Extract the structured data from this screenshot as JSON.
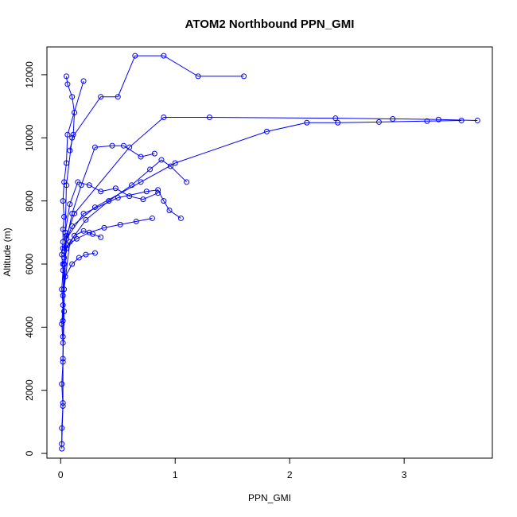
{
  "chart_data": {
    "type": "scatter",
    "title": "ATOM2 Northbound PPN_GMI",
    "xlabel": "PPN_GMI",
    "ylabel": "Altitude (m)",
    "xlim": [
      -0.12,
      3.77
    ],
    "ylim": [
      -150,
      12880
    ],
    "xticks": [
      0,
      1,
      2,
      3
    ],
    "yticks": [
      0,
      2000,
      4000,
      6000,
      8000,
      10000,
      12000
    ],
    "grid": false,
    "legend": "none",
    "color": "#0000ff",
    "marker": "open-circle",
    "style": "points-and-lines",
    "series": [
      {
        "x": [
          0.01,
          0.01,
          0.02,
          0.01,
          0.02,
          0.02,
          0.01,
          0.02,
          0.01,
          0.02,
          0.01,
          0.02,
          0.02,
          0.03,
          0.02,
          0.03,
          0.05,
          0.06,
          0.2
        ],
        "y": [
          150,
          800,
          1500,
          2200,
          2900,
          3500,
          4100,
          4700,
          5200,
          5800,
          6300,
          6700,
          7100,
          7500,
          8000,
          8600,
          9200,
          10100,
          11800
        ]
      },
      {
        "x": [
          0.01,
          0.02,
          0.02,
          0.03,
          0.03,
          0.04,
          0.05,
          0.1,
          0.35,
          0.5,
          0.65,
          0.9,
          1.2,
          1.6
        ],
        "y": [
          300,
          1600,
          3000,
          4500,
          6000,
          7000,
          8500,
          10000,
          11300,
          11300,
          12600,
          12600,
          11950,
          11950
        ]
      },
      {
        "x": [
          0.02,
          0.02,
          0.03,
          0.05,
          0.12,
          0.6,
          0.9,
          1.3,
          2.4,
          2.9,
          3.3,
          3.64
        ],
        "y": [
          3700,
          5000,
          6200,
          6900,
          7600,
          9700,
          10650,
          10650,
          10620,
          10600,
          10580,
          10550
        ]
      },
      {
        "x": [
          0.02,
          0.1,
          0.3,
          0.7,
          1.0,
          1.8,
          2.15,
          2.42,
          2.78,
          3.2,
          3.5
        ],
        "y": [
          6500,
          7200,
          7800,
          8600,
          9200,
          10200,
          10480,
          10480,
          10500,
          10530,
          10550
        ]
      },
      {
        "x": [
          0.02,
          0.05,
          0.2,
          0.5,
          0.75,
          0.85,
          0.9,
          0.95,
          1.05
        ],
        "y": [
          4200,
          6800,
          7600,
          8100,
          8300,
          8350,
          8000,
          7700,
          7450
        ]
      },
      {
        "x": [
          0.03,
          0.08,
          0.22,
          0.42,
          0.62,
          0.78,
          0.88,
          0.96,
          1.1
        ],
        "y": [
          5200,
          6700,
          7400,
          8000,
          8500,
          9000,
          9300,
          9100,
          8600
        ]
      },
      {
        "x": [
          0.02,
          0.06,
          0.14,
          0.25,
          0.38,
          0.52,
          0.66,
          0.8
        ],
        "y": [
          6000,
          6600,
          6800,
          7000,
          7150,
          7250,
          7350,
          7450
        ]
      },
      {
        "x": [
          0.03,
          0.1,
          0.18,
          0.3,
          0.45,
          0.55,
          0.7,
          0.82
        ],
        "y": [
          6400,
          7600,
          8500,
          9700,
          9750,
          9750,
          9400,
          9500
        ]
      },
      {
        "x": [
          0.04,
          0.08,
          0.15,
          0.25,
          0.35,
          0.48,
          0.6,
          0.72,
          0.85
        ],
        "y": [
          7000,
          7900,
          8600,
          8500,
          8300,
          8400,
          8150,
          8050,
          8250
        ]
      },
      {
        "x": [
          0.05,
          0.06,
          0.1,
          0.12,
          0.11,
          0.08
        ],
        "y": [
          11950,
          11700,
          11300,
          10800,
          10100,
          9600
        ]
      },
      {
        "x": [
          0.05,
          0.12,
          0.2,
          0.28,
          0.35
        ],
        "y": [
          6500,
          6900,
          7050,
          6950,
          6850
        ]
      },
      {
        "x": [
          0.04,
          0.1,
          0.16,
          0.22,
          0.3
        ],
        "y": [
          5600,
          6000,
          6200,
          6300,
          6350
        ]
      }
    ]
  }
}
